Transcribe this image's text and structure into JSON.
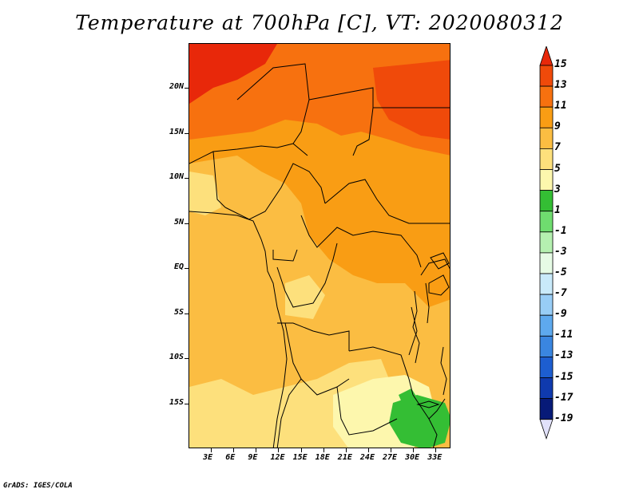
{
  "title": "Temperature at 700hPa [C], VT: 2020080312",
  "credit": "GrADS: IGES/COLA",
  "map": {
    "latitude_labels": [
      "20N",
      "15N",
      "10N",
      "5N",
      "EQ",
      "5S",
      "10S",
      "15S"
    ],
    "latitude_values": [
      20,
      15,
      10,
      5,
      0,
      -5,
      -10,
      -15
    ],
    "longitude_labels": [
      "3E",
      "6E",
      "9E",
      "12E",
      "15E",
      "18E",
      "21E",
      "24E",
      "27E",
      "30E",
      "33E"
    ],
    "longitude_values": [
      3,
      6,
      9,
      12,
      15,
      18,
      21,
      24,
      27,
      30,
      33
    ],
    "lon_range": [
      0,
      35
    ],
    "lat_range": [
      -20,
      25
    ]
  },
  "colorbar": {
    "labels": [
      "15",
      "13",
      "11",
      "9",
      "7",
      "5",
      "3",
      "1",
      "-1",
      "-3",
      "-5",
      "-7",
      "-9",
      "-11",
      "-13",
      "-15",
      "-17",
      "-19"
    ],
    "colors": [
      "#e8280a",
      "#f04a0a",
      "#f7710f",
      "#f99d14",
      "#fbbd42",
      "#fde07c",
      "#fdf7ad",
      "#34be34",
      "#6fdc6f",
      "#b5f0b0",
      "#e6fbe5",
      "#c9eafa",
      "#98cdf6",
      "#5ea9ee",
      "#3a86e0",
      "#1d5ed0",
      "#0f3aae",
      "#071a78",
      "#e1e1fa"
    ]
  }
}
